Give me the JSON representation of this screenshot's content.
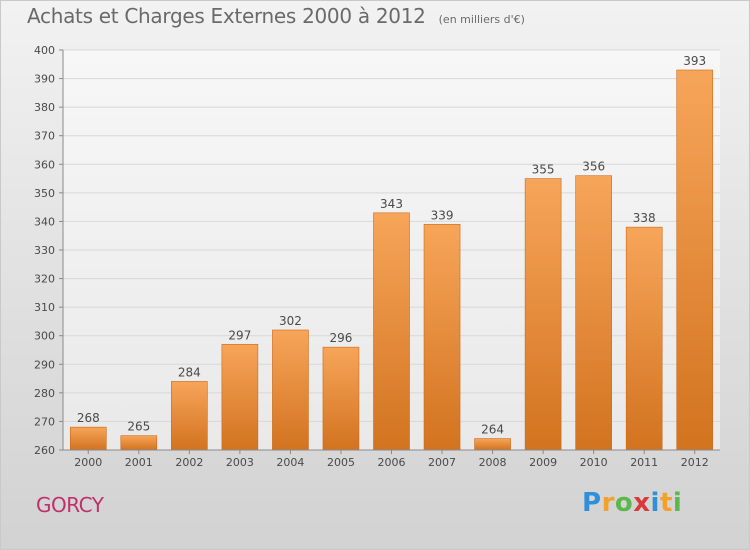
{
  "header": {
    "title": "Achats et Charges Externes 2000 à 2012",
    "unit": "(en milliers d'€)"
  },
  "commune": "GORCY",
  "logo": {
    "letters": [
      "P",
      "r",
      "o",
      "x",
      "i",
      "t",
      "i"
    ],
    "colors": [
      "#2f8fd8",
      "#f2a12a",
      "#5bb84a",
      "#d83a3a",
      "#2f8fd8",
      "#f2a12a",
      "#5bb84a"
    ]
  },
  "colors": {
    "bar_light": "#f7a55a",
    "bar_dark": "#d2731f",
    "grid": "#d8d8d8",
    "text": "#4a4a4a"
  },
  "chart_data": {
    "type": "bar",
    "title": "Achats et Charges Externes 2000 à 2012",
    "categories": [
      "2000",
      "2001",
      "2002",
      "2003",
      "2004",
      "2005",
      "2006",
      "2007",
      "2008",
      "2009",
      "2010",
      "2011",
      "2012"
    ],
    "values": [
      268,
      265,
      284,
      297,
      302,
      296,
      343,
      339,
      264,
      355,
      356,
      338,
      393
    ],
    "ylim": [
      260,
      400
    ],
    "yticks": [
      260,
      270,
      280,
      290,
      300,
      310,
      320,
      330,
      340,
      350,
      360,
      370,
      380,
      390,
      400
    ],
    "grid": true
  }
}
